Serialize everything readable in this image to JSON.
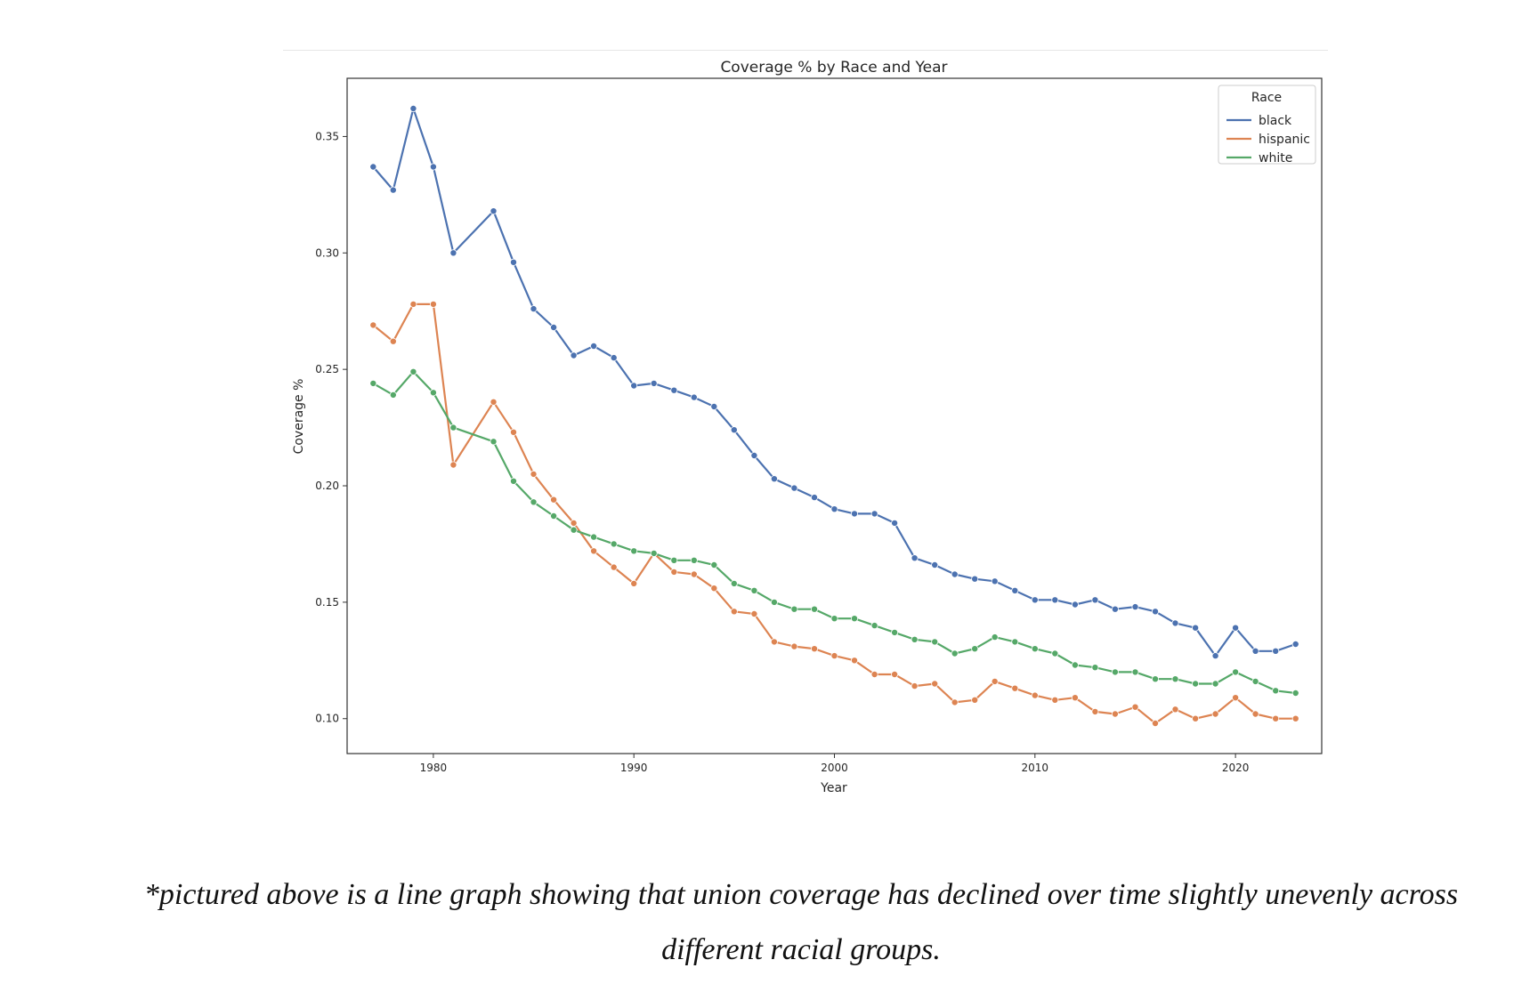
{
  "chart_data": {
    "type": "line",
    "title": "Coverage % by Race and Year",
    "xlabel": "Year",
    "ylabel": "Coverage %",
    "xlim": [
      1975.7,
      2024.3
    ],
    "ylim": [
      0.085,
      0.375
    ],
    "xticks": [
      1980,
      1990,
      2000,
      2010,
      2020
    ],
    "yticks": [
      0.1,
      0.15,
      0.2,
      0.25,
      0.3,
      0.35
    ],
    "ytick_labels": [
      "0.10",
      "0.15",
      "0.20",
      "0.25",
      "0.30",
      "0.35"
    ],
    "grid": false,
    "legend": {
      "title": "Race",
      "position": "top-right"
    },
    "x": [
      1977,
      1978,
      1979,
      1980,
      1981,
      1983,
      1984,
      1985,
      1986,
      1987,
      1988,
      1989,
      1990,
      1991,
      1992,
      1993,
      1994,
      1995,
      1996,
      1997,
      1998,
      1999,
      2000,
      2001,
      2002,
      2003,
      2004,
      2005,
      2006,
      2007,
      2008,
      2009,
      2010,
      2011,
      2012,
      2013,
      2014,
      2015,
      2016,
      2017,
      2018,
      2019,
      2020,
      2021,
      2022,
      2023
    ],
    "series": [
      {
        "name": "black",
        "color": "#4c72b0",
        "values": [
          0.337,
          0.327,
          0.362,
          0.337,
          0.3,
          0.318,
          0.296,
          0.276,
          0.268,
          0.256,
          0.26,
          0.255,
          0.243,
          0.244,
          0.241,
          0.238,
          0.234,
          0.224,
          0.213,
          0.203,
          0.199,
          0.195,
          0.19,
          0.188,
          0.188,
          0.184,
          0.169,
          0.166,
          0.162,
          0.16,
          0.159,
          0.155,
          0.151,
          0.151,
          0.149,
          0.151,
          0.147,
          0.148,
          0.146,
          0.141,
          0.139,
          0.127,
          0.139,
          0.129,
          0.129,
          0.132
        ]
      },
      {
        "name": "hispanic",
        "color": "#dd8452",
        "values": [
          0.269,
          0.262,
          0.278,
          0.278,
          0.209,
          0.236,
          0.223,
          0.205,
          0.194,
          0.184,
          0.172,
          0.165,
          0.158,
          0.171,
          0.163,
          0.162,
          0.156,
          0.146,
          0.145,
          0.133,
          0.131,
          0.13,
          0.127,
          0.125,
          0.119,
          0.119,
          0.114,
          0.115,
          0.107,
          0.108,
          0.116,
          0.113,
          0.11,
          0.108,
          0.109,
          0.103,
          0.102,
          0.105,
          0.098,
          0.104,
          0.1,
          0.102,
          0.109,
          0.102,
          0.1,
          0.1
        ]
      },
      {
        "name": "white",
        "color": "#55a868",
        "values": [
          0.244,
          0.239,
          0.249,
          0.24,
          0.225,
          0.219,
          0.202,
          0.193,
          0.187,
          0.181,
          0.178,
          0.175,
          0.172,
          0.171,
          0.168,
          0.168,
          0.166,
          0.158,
          0.155,
          0.15,
          0.147,
          0.147,
          0.143,
          0.143,
          0.14,
          0.137,
          0.134,
          0.133,
          0.128,
          0.13,
          0.135,
          0.133,
          0.13,
          0.128,
          0.123,
          0.122,
          0.12,
          0.12,
          0.117,
          0.117,
          0.115,
          0.115,
          0.12,
          0.116,
          0.112,
          0.111
        ]
      }
    ]
  },
  "caption": {
    "line1": "*pictured above is a line graph showing that union coverage has declined over time slightly unevenly across",
    "line2": "different racial groups."
  }
}
